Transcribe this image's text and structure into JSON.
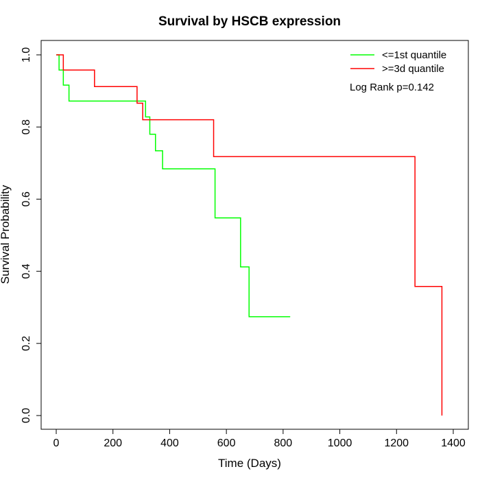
{
  "chart_data": {
    "type": "line",
    "step": true,
    "title": "Survival by HSCB expression",
    "xlabel": "Time (Days)",
    "ylabel": "Survival Probability",
    "xlim": [
      0,
      1400
    ],
    "ylim": [
      0,
      1
    ],
    "x_ticks": [
      0,
      200,
      400,
      600,
      800,
      1000,
      1200,
      1400
    ],
    "y_ticks": [
      0.0,
      0.2,
      0.4,
      0.6,
      0.8,
      1.0
    ],
    "x_tick_labels": [
      "0",
      "200",
      "400",
      "600",
      "800",
      "1000",
      "1200",
      "1400"
    ],
    "y_tick_labels": [
      "0.0",
      "0.2",
      "0.4",
      "0.6",
      "0.8",
      "1.0"
    ],
    "grid": false,
    "legend_position": "top-right",
    "annotation": "Log Rank p=0.142",
    "series": [
      {
        "name": "<=1st quantile",
        "color": "#00ff00",
        "points": [
          [
            0,
            1.0
          ],
          [
            10,
            0.958
          ],
          [
            25,
            0.916
          ],
          [
            45,
            0.872
          ],
          [
            315,
            0.828
          ],
          [
            330,
            0.78
          ],
          [
            350,
            0.734
          ],
          [
            375,
            0.684
          ],
          [
            560,
            0.548
          ],
          [
            650,
            0.412
          ],
          [
            680,
            0.274
          ],
          [
            825,
            0.274
          ]
        ]
      },
      {
        "name": ">=3d quantile",
        "color": "#ff0000",
        "points": [
          [
            0,
            1.0
          ],
          [
            25,
            0.958
          ],
          [
            135,
            0.912
          ],
          [
            285,
            0.866
          ],
          [
            305,
            0.82
          ],
          [
            555,
            0.718
          ],
          [
            1265,
            0.358
          ],
          [
            1360,
            0.0
          ]
        ]
      }
    ]
  }
}
